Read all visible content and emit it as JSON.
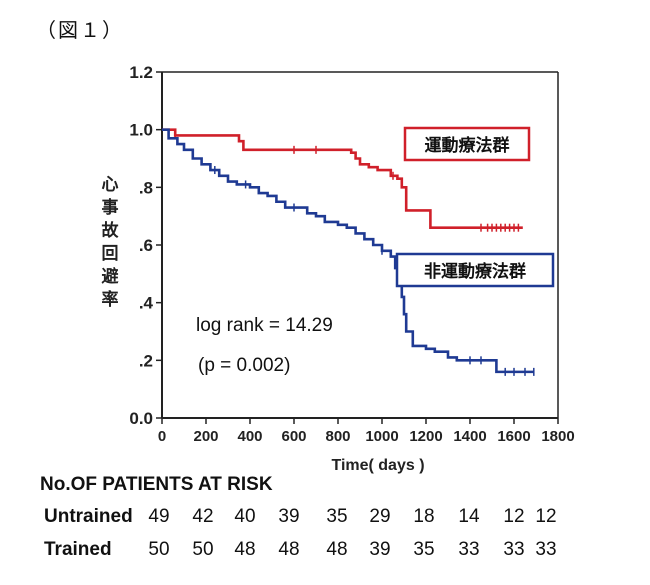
{
  "figure_label": "（図１）",
  "chart_data": {
    "type": "line",
    "xlabel": "Time( days )",
    "ylabel": "心事故回避率",
    "xlim": [
      0,
      1800
    ],
    "ylim": [
      0.0,
      1.2
    ],
    "x_ticks": [
      0,
      200,
      400,
      600,
      800,
      1000,
      1200,
      1400,
      1600,
      1800
    ],
    "x_tick_labels": [
      "0",
      "200",
      "400",
      "600",
      "800",
      "1000",
      "1200",
      "1400",
      "1600",
      "1800"
    ],
    "y_ticks": [
      0.0,
      0.2,
      0.4,
      0.6,
      0.8,
      1.0,
      1.2
    ],
    "y_tick_labels": [
      "0.0",
      ".2",
      ".4",
      ".6",
      ".8",
      "1.0",
      "1.2"
    ],
    "grid": false,
    "series": [
      {
        "name": "運動療法群",
        "color": "#d0202a",
        "points": [
          [
            0,
            1.0
          ],
          [
            60,
            0.98
          ],
          [
            300,
            0.98
          ],
          [
            350,
            0.96
          ],
          [
            370,
            0.93
          ],
          [
            840,
            0.93
          ],
          [
            860,
            0.92
          ],
          [
            880,
            0.9
          ],
          [
            900,
            0.88
          ],
          [
            940,
            0.87
          ],
          [
            980,
            0.86
          ],
          [
            1040,
            0.84
          ],
          [
            1070,
            0.83
          ],
          [
            1090,
            0.8
          ],
          [
            1110,
            0.72
          ],
          [
            1200,
            0.72
          ],
          [
            1220,
            0.66
          ],
          [
            1640,
            0.66
          ]
        ],
        "censor_x": [
          60,
          600,
          700,
          1050,
          1450,
          1480,
          1500,
          1520,
          1540,
          1560,
          1580,
          1600,
          1620
        ]
      },
      {
        "name": "非運動療法群",
        "color": "#1f3a93",
        "points": [
          [
            0,
            1.0
          ],
          [
            30,
            0.97
          ],
          [
            70,
            0.95
          ],
          [
            100,
            0.93
          ],
          [
            140,
            0.9
          ],
          [
            180,
            0.88
          ],
          [
            220,
            0.86
          ],
          [
            260,
            0.84
          ],
          [
            300,
            0.82
          ],
          [
            340,
            0.81
          ],
          [
            400,
            0.8
          ],
          [
            440,
            0.78
          ],
          [
            480,
            0.77
          ],
          [
            520,
            0.75
          ],
          [
            560,
            0.73
          ],
          [
            640,
            0.73
          ],
          [
            660,
            0.71
          ],
          [
            700,
            0.7
          ],
          [
            740,
            0.68
          ],
          [
            800,
            0.67
          ],
          [
            840,
            0.66
          ],
          [
            880,
            0.64
          ],
          [
            920,
            0.62
          ],
          [
            960,
            0.6
          ],
          [
            1000,
            0.58
          ],
          [
            1040,
            0.56
          ],
          [
            1060,
            0.52
          ],
          [
            1080,
            0.48
          ],
          [
            1090,
            0.42
          ],
          [
            1100,
            0.36
          ],
          [
            1110,
            0.3
          ],
          [
            1140,
            0.25
          ],
          [
            1200,
            0.24
          ],
          [
            1240,
            0.23
          ],
          [
            1300,
            0.21
          ],
          [
            1340,
            0.2
          ],
          [
            1500,
            0.2
          ],
          [
            1520,
            0.16
          ],
          [
            1690,
            0.16
          ]
        ],
        "censor_x": [
          240,
          380,
          600,
          1000,
          1400,
          1450,
          1560,
          1600,
          1650,
          1690
        ]
      }
    ],
    "annotations": [
      "log rank = 14.29",
      "(p = 0.002)"
    ],
    "risk_table": {
      "title": "No.OF PATIENTS AT RISK",
      "rows": [
        {
          "label": "Untrained",
          "values": [
            "49",
            "42",
            "40",
            "39",
            "35",
            "29",
            "18",
            "14",
            "12",
            "12"
          ]
        },
        {
          "label": "Trained",
          "values": [
            "50",
            "50",
            "48",
            "48",
            "48",
            "39",
            "35",
            "33",
            "33",
            "33"
          ]
        }
      ]
    }
  }
}
